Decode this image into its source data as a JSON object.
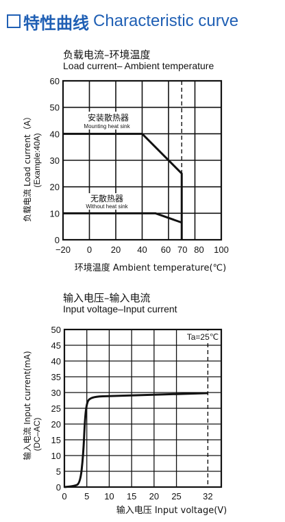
{
  "header": {
    "title_zh": "特性曲线",
    "title_en": "Characteristic curve",
    "accent_color": "#1f5fb4",
    "icon": "square-outline-icon"
  },
  "chart_data": [
    {
      "type": "line",
      "title": "负载电流–环境温度",
      "subtitle": "Load current– Ambient temperature",
      "xlabel": "环境温度 Ambient temperature(℃)",
      "ylabel": "负载电流 Load current（A）",
      "ylabel2": "(Example:40A)",
      "xlim": [
        -20,
        100
      ],
      "ylim": [
        0,
        60
      ],
      "x_ticks": [
        -20,
        0,
        20,
        40,
        60,
        70,
        80,
        100
      ],
      "x_tick_labels": [
        "−20",
        "0",
        "20",
        "40",
        "60",
        "70",
        "80",
        "100"
      ],
      "y_ticks": [
        0,
        10,
        20,
        30,
        40,
        50,
        60
      ],
      "grid": true,
      "vline": 70,
      "series": [
        {
          "name": "安装散热器",
          "name_en": "Mounting heat sink",
          "x": [
            -20,
            40,
            70,
            70
          ],
          "y": [
            40,
            40,
            25,
            0
          ]
        },
        {
          "name": "无散热器",
          "name_en": "Without heat sink",
          "x": [
            -20,
            50,
            70
          ],
          "y": [
            10,
            10,
            6.5
          ]
        }
      ]
    },
    {
      "type": "line",
      "title": "输入电压–输入电流",
      "subtitle": "Input voltage–Input current",
      "xlabel": "输入电压 Input voltage(V)",
      "ylabel": "输入电流 Input current(mA)",
      "ylabel2": "(DC–AC)",
      "annotation": "Ta=25℃",
      "xlim": [
        0,
        35
      ],
      "ylim": [
        0,
        50
      ],
      "x_ticks": [
        0,
        5,
        10,
        15,
        20,
        25,
        32
      ],
      "y_ticks": [
        0,
        5,
        10,
        15,
        20,
        25,
        30,
        35,
        40,
        45,
        50
      ],
      "grid": true,
      "vline": 32,
      "series": [
        {
          "x": [
            0,
            2,
            3.5,
            4.2,
            4.6,
            5.0,
            5.5,
            7,
            10,
            32
          ],
          "y": [
            0,
            0.3,
            1,
            10,
            22,
            26.5,
            28,
            28.7,
            28.9,
            29.8
          ]
        }
      ]
    }
  ]
}
